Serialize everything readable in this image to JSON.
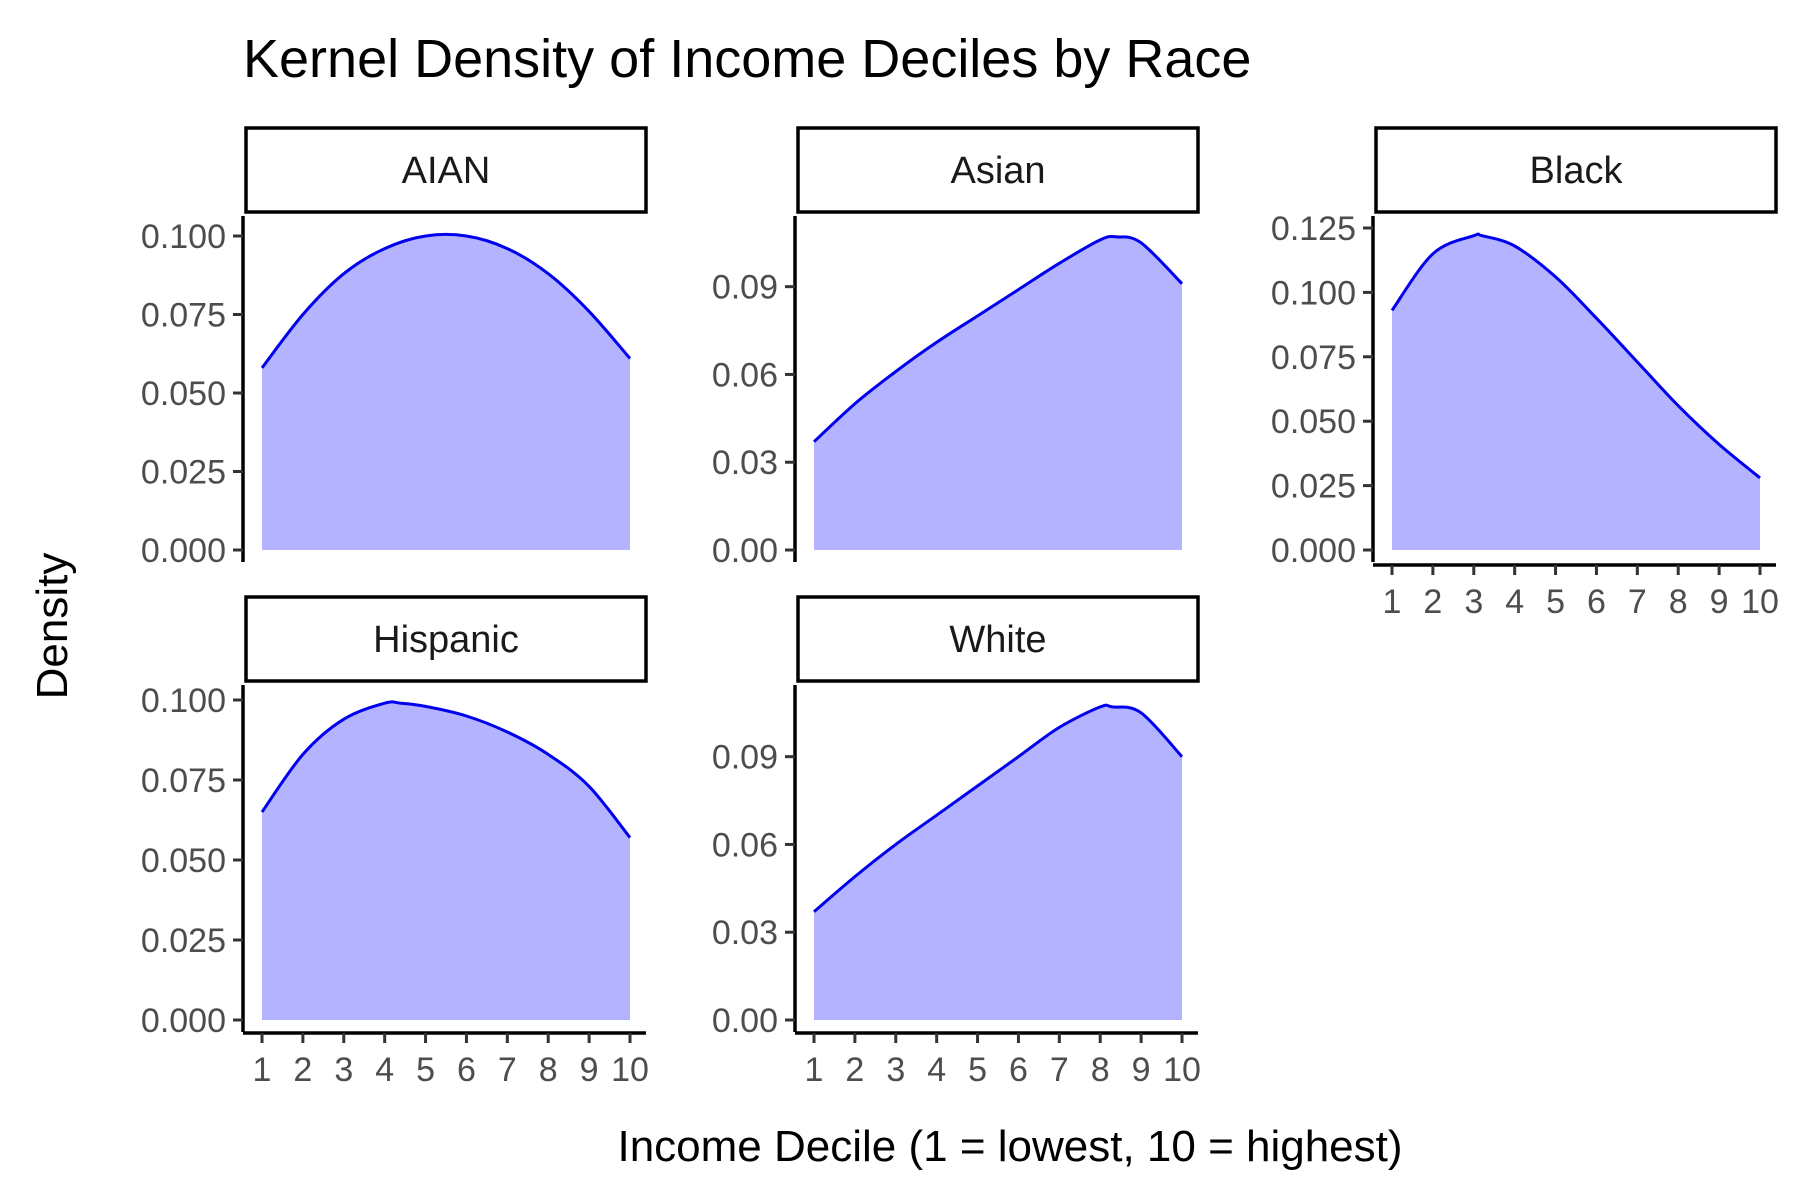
{
  "chart_data": {
    "type": "area",
    "title": "Kernel Density of Income Deciles by Race",
    "xlabel": "Income Decile (1 = lowest, 10 = highest)",
    "ylabel": "Density",
    "fill_color": "#b3b3ff",
    "line_color": "#0000ee",
    "grid": false,
    "x_ticks": [
      "1",
      "2",
      "3",
      "4",
      "5",
      "6",
      "7",
      "8",
      "9",
      "10"
    ],
    "xlim": [
      1,
      10
    ],
    "panels": [
      {
        "name": "AIAN",
        "y_ticks": [
          "0.000",
          "0.025",
          "0.050",
          "0.075",
          "0.100"
        ],
        "y_tick_values": [
          0,
          0.025,
          0.05,
          0.075,
          0.1
        ],
        "ylim": [
          0,
          0.1
        ],
        "x": [
          1,
          2,
          3,
          4,
          5,
          6,
          7,
          8,
          9,
          10
        ],
        "y": [
          0.058,
          0.075,
          0.088,
          0.096,
          0.1,
          0.1,
          0.096,
          0.088,
          0.076,
          0.061
        ]
      },
      {
        "name": "Asian",
        "y_ticks": [
          "0.00",
          "0.03",
          "0.06",
          "0.09"
        ],
        "y_tick_values": [
          0,
          0.03,
          0.06,
          0.09
        ],
        "ylim": [
          0,
          0.108
        ],
        "x": [
          1,
          2,
          3,
          4,
          5,
          6,
          7,
          8,
          8.4,
          9,
          10
        ],
        "y": [
          0.037,
          0.05,
          0.061,
          0.071,
          0.08,
          0.089,
          0.098,
          0.106,
          0.107,
          0.105,
          0.091
        ]
      },
      {
        "name": "Black",
        "y_ticks": [
          "0.000",
          "0.025",
          "0.050",
          "0.075",
          "0.100",
          "0.125"
        ],
        "y_tick_values": [
          0,
          0.025,
          0.05,
          0.075,
          0.1,
          0.125
        ],
        "ylim": [
          0,
          0.125
        ],
        "x": [
          1,
          2,
          3,
          3.2,
          4,
          5,
          6,
          7,
          8,
          9,
          10
        ],
        "y": [
          0.093,
          0.115,
          0.122,
          0.122,
          0.118,
          0.106,
          0.09,
          0.073,
          0.056,
          0.041,
          0.028
        ]
      },
      {
        "name": "Hispanic",
        "y_ticks": [
          "0.000",
          "0.025",
          "0.050",
          "0.075",
          "0.100"
        ],
        "y_tick_values": [
          0,
          0.025,
          0.05,
          0.075,
          0.1
        ],
        "ylim": [
          0,
          0.1
        ],
        "x": [
          1,
          2,
          3,
          4,
          4.4,
          5,
          6,
          7,
          8,
          9,
          10
        ],
        "y": [
          0.065,
          0.083,
          0.094,
          0.099,
          0.099,
          0.098,
          0.095,
          0.09,
          0.083,
          0.073,
          0.057
        ]
      },
      {
        "name": "White",
        "y_ticks": [
          "0.00",
          "0.03",
          "0.06",
          "0.09"
        ],
        "y_tick_values": [
          0,
          0.03,
          0.06,
          0.09
        ],
        "ylim": [
          0,
          0.108
        ],
        "x": [
          1,
          2,
          3,
          4,
          5,
          6,
          7,
          8,
          8.3,
          9,
          10
        ],
        "y": [
          0.037,
          0.049,
          0.06,
          0.07,
          0.08,
          0.09,
          0.1,
          0.107,
          0.107,
          0.105,
          0.09
        ]
      }
    ]
  }
}
